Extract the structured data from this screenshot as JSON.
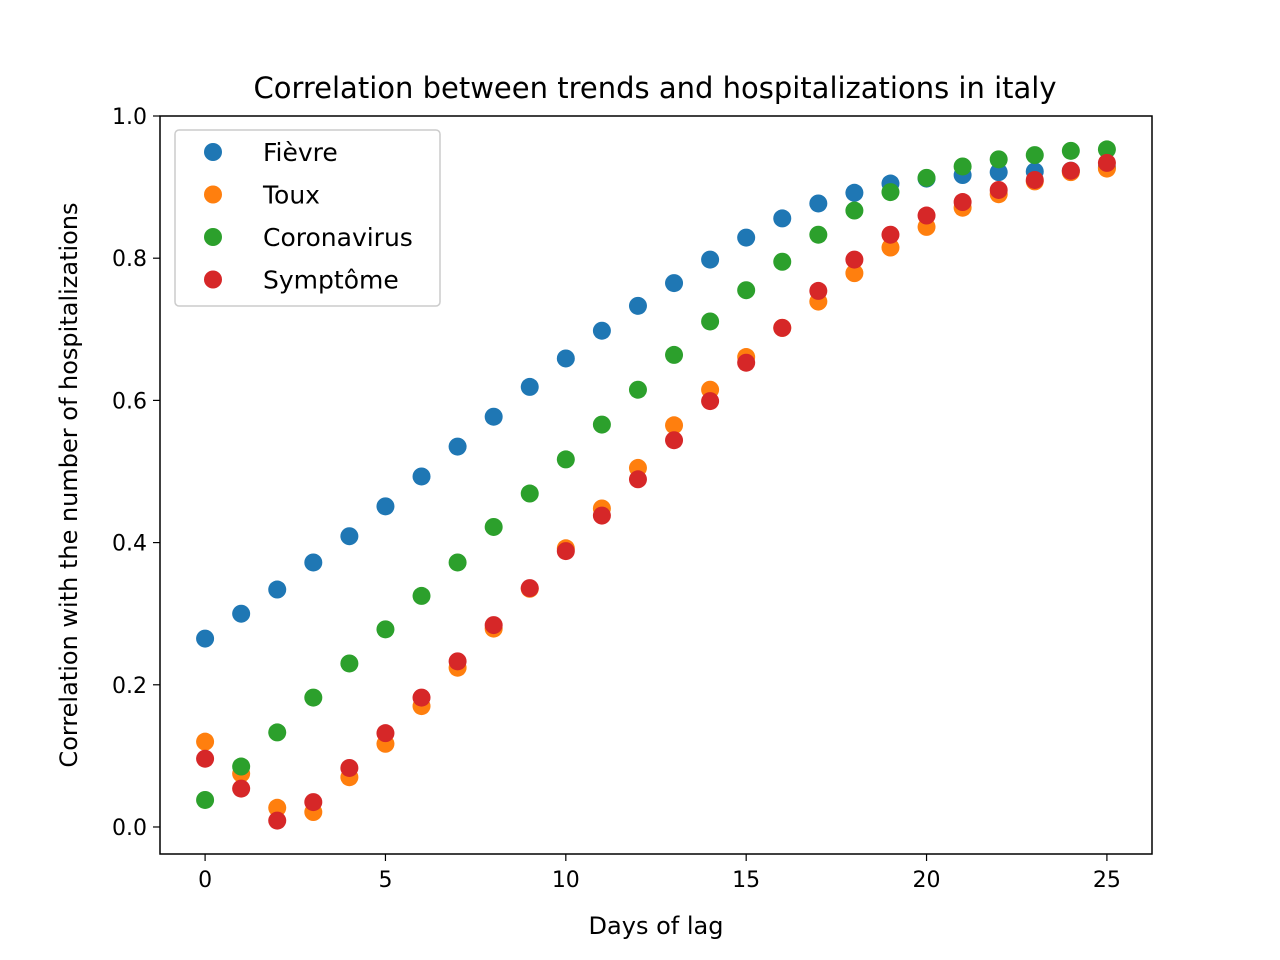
{
  "chart_data": {
    "type": "scatter",
    "title": "Correlation between trends and hospitalizations in italy",
    "xlabel": "Days of lag",
    "ylabel": "Correlation with the number of hospitalizations",
    "xlim": [
      -1.25,
      26.25
    ],
    "ylim": [
      -0.038,
      1.0
    ],
    "xticks": [
      0,
      5,
      10,
      15,
      20,
      25
    ],
    "xtick_labels": [
      "0",
      "5",
      "10",
      "15",
      "20",
      "25"
    ],
    "yticks": [
      0.0,
      0.2,
      0.4,
      0.6,
      0.8,
      1.0
    ],
    "ytick_labels": [
      "0.0",
      "0.2",
      "0.4",
      "0.6",
      "0.8",
      "1.0"
    ],
    "grid": false,
    "legend_position": "upper-left",
    "x": [
      0,
      1,
      2,
      3,
      4,
      5,
      6,
      7,
      8,
      9,
      10,
      11,
      12,
      13,
      14,
      15,
      16,
      17,
      18,
      19,
      20,
      21,
      22,
      23,
      24,
      25
    ],
    "series": [
      {
        "name": "Fièvre",
        "color": "#1f77b4",
        "values": [
          0.265,
          0.3,
          0.334,
          0.372,
          0.409,
          0.451,
          0.493,
          0.535,
          0.577,
          0.619,
          0.659,
          0.698,
          0.733,
          0.765,
          0.798,
          0.829,
          0.856,
          0.877,
          0.892,
          0.905,
          0.912,
          0.917,
          0.921,
          0.922,
          0.923,
          0.928
        ]
      },
      {
        "name": "Toux",
        "color": "#ff7f0e",
        "values": [
          0.12,
          0.075,
          0.027,
          0.021,
          0.07,
          0.117,
          0.17,
          0.224,
          0.279,
          0.335,
          0.392,
          0.448,
          0.505,
          0.565,
          0.615,
          0.661,
          0.702,
          0.739,
          0.779,
          0.815,
          0.844,
          0.871,
          0.89,
          0.908,
          0.921,
          0.926
        ]
      },
      {
        "name": "Coronavirus",
        "color": "#2ca02c",
        "values": [
          0.038,
          0.085,
          0.133,
          0.182,
          0.23,
          0.278,
          0.325,
          0.372,
          0.422,
          0.469,
          0.517,
          0.566,
          0.615,
          0.664,
          0.711,
          0.755,
          0.795,
          0.833,
          0.867,
          0.893,
          0.913,
          0.929,
          0.939,
          0.945,
          0.951,
          0.953
        ]
      },
      {
        "name": "Symptôme",
        "color": "#d62728",
        "values": [
          0.096,
          0.054,
          0.009,
          0.035,
          0.083,
          0.132,
          0.182,
          0.233,
          0.284,
          0.336,
          0.388,
          0.438,
          0.489,
          0.544,
          0.599,
          0.653,
          0.702,
          0.754,
          0.798,
          0.833,
          0.86,
          0.879,
          0.896,
          0.91,
          0.923,
          0.934
        ]
      }
    ]
  }
}
